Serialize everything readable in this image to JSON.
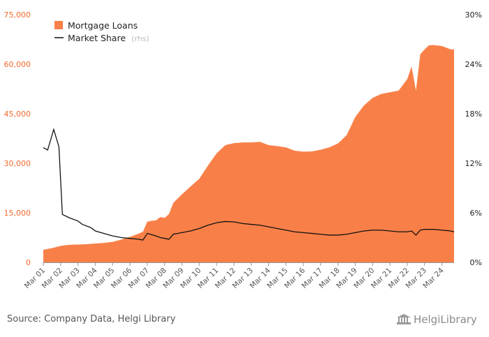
{
  "chart_data": {
    "type": "area",
    "legend_position": "top-left",
    "grid": false,
    "series": [
      {
        "name": "Mortgage Loans",
        "type": "area",
        "axis": "left",
        "color": "#f88048",
        "points": [
          [
            2001.0,
            3800
          ],
          [
            2001.5,
            4300
          ],
          [
            2002.0,
            5000
          ],
          [
            2002.5,
            5300
          ],
          [
            2003.0,
            5400
          ],
          [
            2003.5,
            5500
          ],
          [
            2004.0,
            5700
          ],
          [
            2004.5,
            5900
          ],
          [
            2005.0,
            6200
          ],
          [
            2005.5,
            6900
          ],
          [
            2006.0,
            7700
          ],
          [
            2006.5,
            8700
          ],
          [
            2006.75,
            9300
          ],
          [
            2007.0,
            12300
          ],
          [
            2007.25,
            12600
          ],
          [
            2007.5,
            12700
          ],
          [
            2007.75,
            13700
          ],
          [
            2008.0,
            13500
          ],
          [
            2008.25,
            14600
          ],
          [
            2008.5,
            18000
          ],
          [
            2009.0,
            20600
          ],
          [
            2009.5,
            23000
          ],
          [
            2010.0,
            25300
          ],
          [
            2010.5,
            29300
          ],
          [
            2011.0,
            33000
          ],
          [
            2011.5,
            35500
          ],
          [
            2012.0,
            36100
          ],
          [
            2012.5,
            36300
          ],
          [
            2013.0,
            36300
          ],
          [
            2013.5,
            36500
          ],
          [
            2014.0,
            35500
          ],
          [
            2014.5,
            35200
          ],
          [
            2015.0,
            34800
          ],
          [
            2015.5,
            33800
          ],
          [
            2016.0,
            33500
          ],
          [
            2016.5,
            33600
          ],
          [
            2017.0,
            34100
          ],
          [
            2017.5,
            34800
          ],
          [
            2018.0,
            36000
          ],
          [
            2018.5,
            38500
          ],
          [
            2019.0,
            44000
          ],
          [
            2019.5,
            47500
          ],
          [
            2020.0,
            49800
          ],
          [
            2020.5,
            51000
          ],
          [
            2021.0,
            51500
          ],
          [
            2021.5,
            52000
          ],
          [
            2022.0,
            55500
          ],
          [
            2022.25,
            59300
          ],
          [
            2022.5,
            52000
          ],
          [
            2022.75,
            63000
          ],
          [
            2023.0,
            64500
          ],
          [
            2023.25,
            65700
          ],
          [
            2023.5,
            65800
          ],
          [
            2024.0,
            65500
          ],
          [
            2024.5,
            64500
          ],
          [
            2024.7,
            64500
          ]
        ]
      },
      {
        "name": "Market Share",
        "name_note": "(rhs)",
        "type": "line",
        "axis": "right",
        "unit": "%",
        "color": "#111111",
        "points": [
          [
            2001.0,
            13.9
          ],
          [
            2001.25,
            13.6
          ],
          [
            2001.6,
            16.1
          ],
          [
            2001.9,
            14.0
          ],
          [
            2002.1,
            5.8
          ],
          [
            2002.5,
            5.4
          ],
          [
            2003.0,
            5.0
          ],
          [
            2003.25,
            4.6
          ],
          [
            2003.75,
            4.2
          ],
          [
            2004.0,
            3.8
          ],
          [
            2004.5,
            3.5
          ],
          [
            2005.0,
            3.2
          ],
          [
            2005.5,
            3.0
          ],
          [
            2006.0,
            2.9
          ],
          [
            2006.5,
            2.8
          ],
          [
            2006.75,
            2.7
          ],
          [
            2007.0,
            3.5
          ],
          [
            2007.5,
            3.2
          ],
          [
            2007.75,
            3.0
          ],
          [
            2008.0,
            2.9
          ],
          [
            2008.25,
            2.8
          ],
          [
            2008.5,
            3.4
          ],
          [
            2009.0,
            3.6
          ],
          [
            2009.5,
            3.8
          ],
          [
            2010.0,
            4.1
          ],
          [
            2010.5,
            4.5
          ],
          [
            2011.0,
            4.8
          ],
          [
            2011.5,
            4.95
          ],
          [
            2012.0,
            4.9
          ],
          [
            2012.5,
            4.7
          ],
          [
            2013.0,
            4.6
          ],
          [
            2013.5,
            4.5
          ],
          [
            2014.0,
            4.3
          ],
          [
            2014.5,
            4.1
          ],
          [
            2015.0,
            3.9
          ],
          [
            2015.5,
            3.7
          ],
          [
            2016.0,
            3.6
          ],
          [
            2016.5,
            3.5
          ],
          [
            2017.0,
            3.4
          ],
          [
            2017.5,
            3.3
          ],
          [
            2018.0,
            3.3
          ],
          [
            2018.5,
            3.4
          ],
          [
            2019.0,
            3.6
          ],
          [
            2019.5,
            3.8
          ],
          [
            2020.0,
            3.9
          ],
          [
            2020.5,
            3.9
          ],
          [
            2021.0,
            3.8
          ],
          [
            2021.5,
            3.7
          ],
          [
            2022.0,
            3.7
          ],
          [
            2022.25,
            3.8
          ],
          [
            2022.5,
            3.3
          ],
          [
            2022.75,
            3.9
          ],
          [
            2023.0,
            4.0
          ],
          [
            2023.5,
            4.0
          ],
          [
            2024.0,
            3.9
          ],
          [
            2024.5,
            3.8
          ],
          [
            2024.7,
            3.7
          ]
        ]
      }
    ],
    "x_range": [
      2001,
      2024.7
    ],
    "x_tick_labels": [
      "Mar 01",
      "Mar 02",
      "Mar 03",
      "Mar 04",
      "Mar 05",
      "Mar 06",
      "Mar 07",
      "Mar 08",
      "Mar 09",
      "Mar 10",
      "Mar 11",
      "Mar 12",
      "Mar 13",
      "Mar 14",
      "Mar 15",
      "Mar 16",
      "Mar 17",
      "Mar 18",
      "Mar 19",
      "Mar 20",
      "Mar 21",
      "Mar 22",
      "Mar 23",
      "Mar 24"
    ],
    "y_left": {
      "min": 0,
      "max": 75000,
      "ticks": [
        "0",
        "15,000",
        "30,000",
        "45,000",
        "60,000",
        "75,000"
      ],
      "color": "#f26b2e"
    },
    "y_right": {
      "min": 0,
      "max": 30,
      "ticks": [
        "0%",
        "6%",
        "12%",
        "18%",
        "24%",
        "30%"
      ]
    }
  },
  "footer": {
    "source": "Source: Company Data, Helgi Library",
    "logo_text": "HelgiLibrary"
  }
}
